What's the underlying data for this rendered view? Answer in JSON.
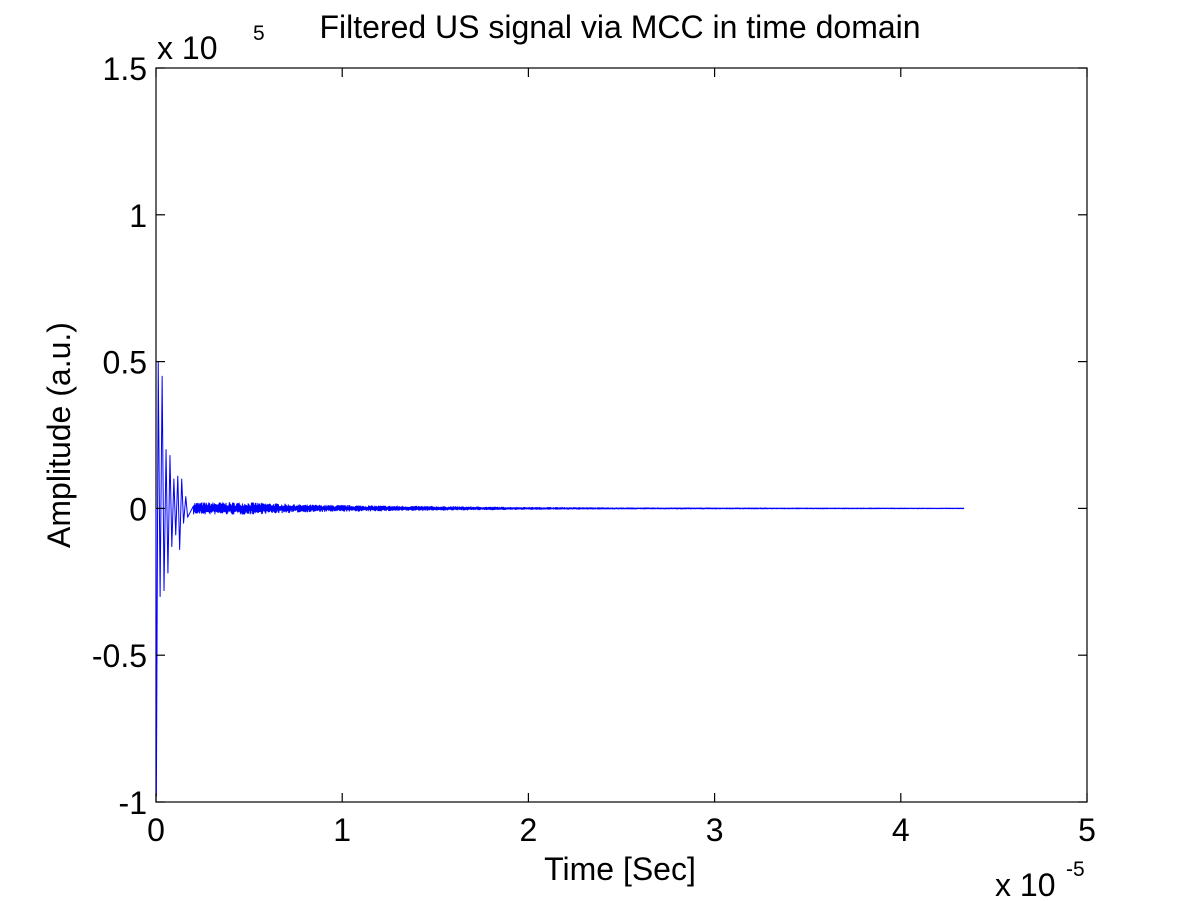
{
  "chart_data": {
    "type": "line",
    "title": "Filtered US signal via MCC in time domain",
    "xlabel": "Time [Sec]",
    "ylabel": "Amplitude (a.u.)",
    "x_multiplier": {
      "base": "x 10",
      "exponent": "-5"
    },
    "y_multiplier": {
      "base": "x 10",
      "exponent": "5"
    },
    "xlim": [
      0,
      5
    ],
    "ylim": [
      -1,
      1.5
    ],
    "xticks": [
      0,
      1,
      2,
      3,
      4,
      5
    ],
    "xtick_labels": [
      "0",
      "1",
      "2",
      "3",
      "4",
      "5"
    ],
    "yticks": [
      -1,
      -0.5,
      0,
      0.5,
      1,
      1.5
    ],
    "ytick_labels": [
      "-1",
      "-0.5",
      "0",
      "0.5",
      "1",
      "1.5"
    ],
    "grid": false,
    "line_color": "#0000ff",
    "signal": {
      "x_end": 4.34,
      "peaks": [
        {
          "x": 0.002,
          "y": -0.98
        },
        {
          "x": 0.012,
          "y": 0.5
        },
        {
          "x": 0.022,
          "y": -0.3
        },
        {
          "x": 0.033,
          "y": 0.45
        },
        {
          "x": 0.043,
          "y": -0.28
        },
        {
          "x": 0.054,
          "y": 0.2
        },
        {
          "x": 0.064,
          "y": -0.22
        },
        {
          "x": 0.075,
          "y": 0.18
        },
        {
          "x": 0.085,
          "y": -0.13
        },
        {
          "x": 0.096,
          "y": 0.1
        },
        {
          "x": 0.106,
          "y": -0.09
        },
        {
          "x": 0.117,
          "y": 0.11
        },
        {
          "x": 0.127,
          "y": -0.14
        },
        {
          "x": 0.138,
          "y": 0.1
        },
        {
          "x": 0.148,
          "y": -0.05
        },
        {
          "x": 0.16,
          "y": 0.04
        },
        {
          "x": 0.17,
          "y": -0.03
        }
      ],
      "tail_envelope": [
        {
          "x": 0.2,
          "a": 0.02
        },
        {
          "x": 0.5,
          "a": 0.02
        },
        {
          "x": 0.8,
          "a": 0.012
        },
        {
          "x": 1.3,
          "a": 0.008
        },
        {
          "x": 1.9,
          "a": 0.004
        },
        {
          "x": 2.5,
          "a": 0.002
        },
        {
          "x": 4.34,
          "a": 0.001
        }
      ]
    }
  }
}
